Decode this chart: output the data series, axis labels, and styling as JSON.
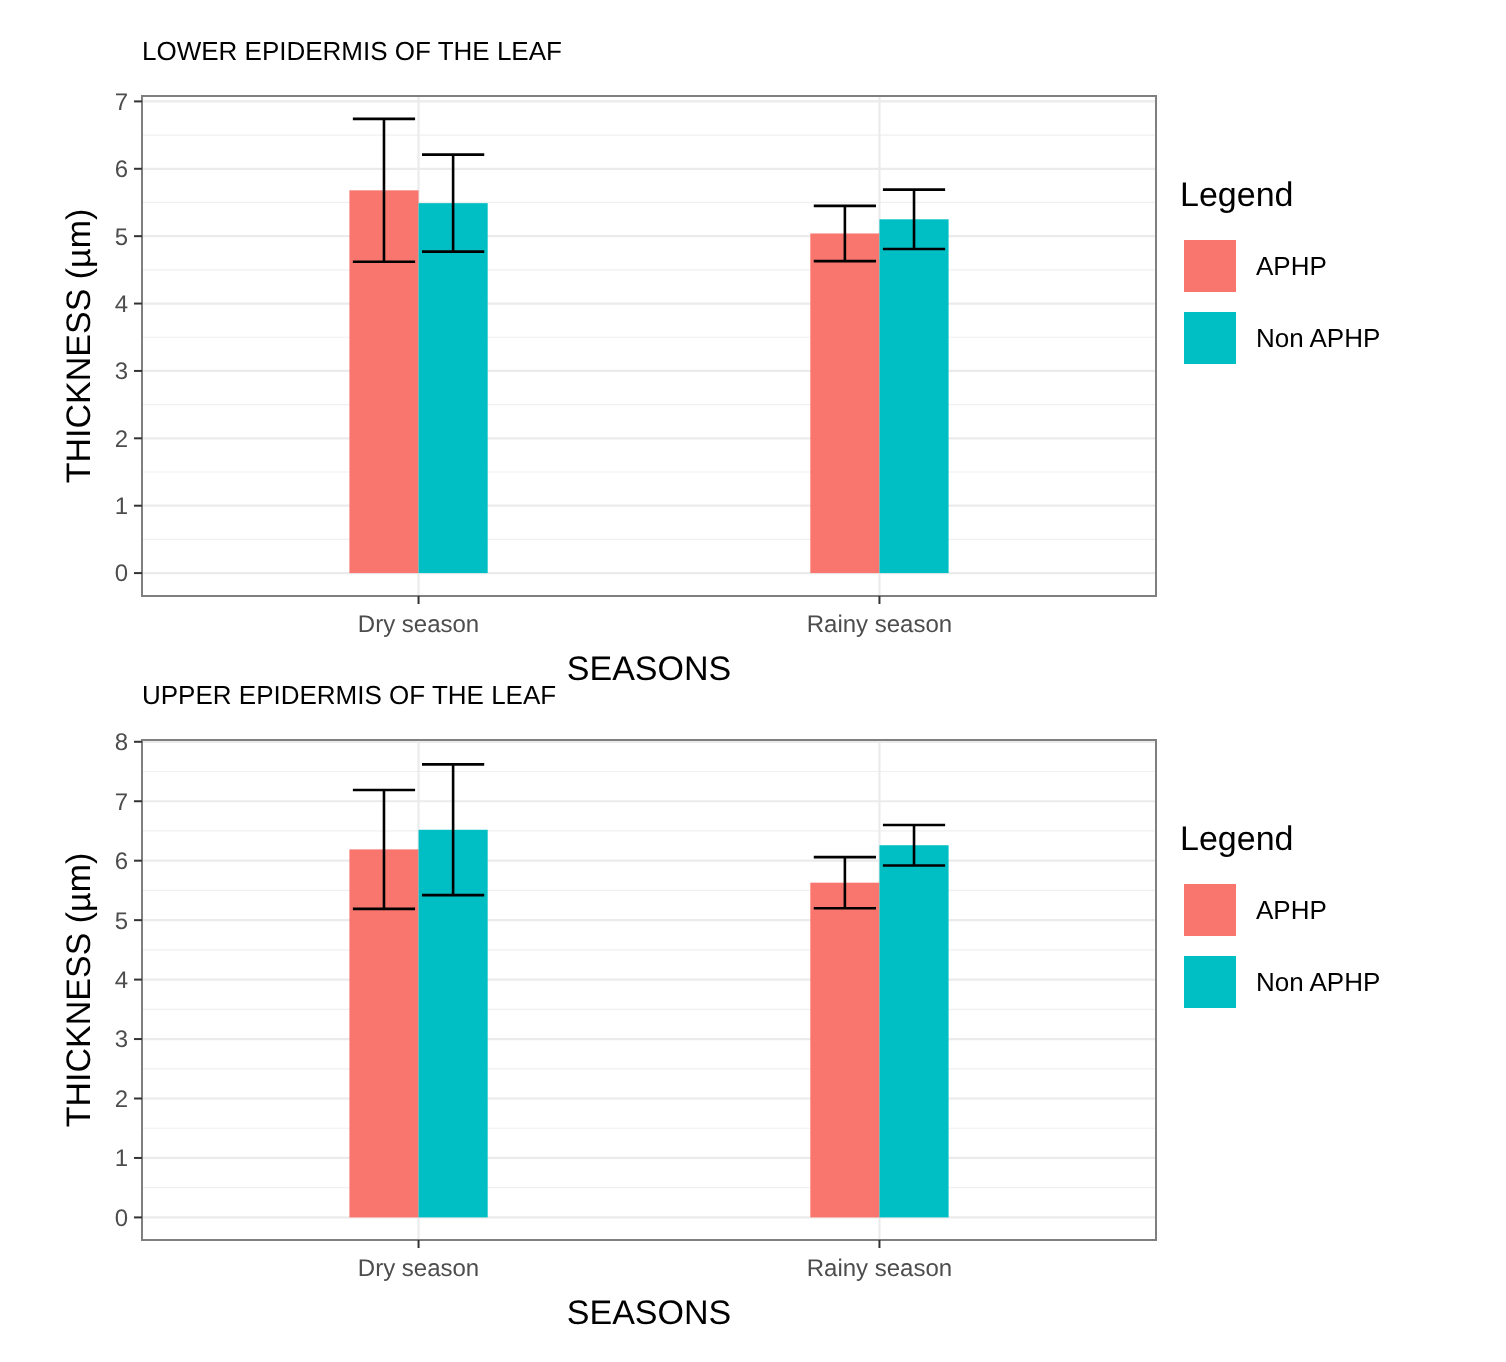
{
  "chart_data": [
    {
      "type": "bar",
      "title": "LOWER EPIDERMIS OF THE LEAF",
      "xlabel": "SEASONS",
      "ylabel": "THICKNESS (µm)",
      "legend_title": "Legend",
      "categories": [
        "Dry season",
        "Rainy season"
      ],
      "series": [
        {
          "name": "APHP",
          "color": "#f8766d",
          "values": [
            5.68,
            5.04
          ],
          "errors": [
            1.06,
            0.41
          ]
        },
        {
          "name": "Non APHP",
          "color": "#00bfc4",
          "values": [
            5.49,
            5.25
          ],
          "errors": [
            0.72,
            0.44
          ]
        }
      ],
      "ylim": [
        -0.34,
        7.08
      ],
      "yticks": [
        0,
        1,
        2,
        3,
        4,
        5,
        6,
        7
      ],
      "grid": true,
      "legend": "right"
    },
    {
      "type": "bar",
      "title": "UPPER EPIDERMIS OF THE LEAF",
      "xlabel": "SEASONS",
      "ylabel": "THICKNESS (µm)",
      "legend_title": "Legend",
      "categories": [
        "Dry season",
        "Rainy season"
      ],
      "series": [
        {
          "name": "APHP",
          "color": "#f8766d",
          "values": [
            6.19,
            5.63
          ],
          "errors": [
            1.0,
            0.43
          ]
        },
        {
          "name": "Non APHP",
          "color": "#00bfc4",
          "values": [
            6.52,
            6.26
          ],
          "errors": [
            1.1,
            0.34
          ]
        }
      ],
      "ylim": [
        -0.38,
        8.03
      ],
      "yticks": [
        0,
        1,
        2,
        3,
        4,
        5,
        6,
        7,
        8
      ],
      "grid": true,
      "legend": "right"
    }
  ]
}
